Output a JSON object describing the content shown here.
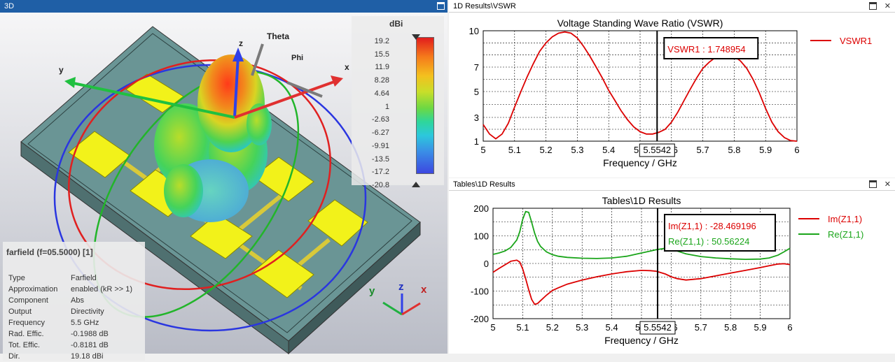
{
  "pane3d": {
    "title": "3D",
    "colorbar": {
      "unit": "dBi",
      "ticks": [
        "19.2",
        "15.5",
        "11.9",
        "8.28",
        "4.64",
        "1",
        "-2.63",
        "-6.27",
        "-9.91",
        "-13.5",
        "-17.2",
        "-20.8"
      ]
    },
    "axes_labels": {
      "theta": "Theta",
      "phi": "Phi",
      "x": "x",
      "y": "y",
      "z": "z"
    },
    "triad": {
      "x": "x",
      "y": "y",
      "z": "z"
    },
    "info": {
      "title": "farfield (f=05.5000) [1]",
      "rows": [
        {
          "key": "Type",
          "value": "Farfield"
        },
        {
          "key": "Approximation",
          "value": "enabled (kR >> 1)"
        },
        {
          "key": "Component",
          "value": "Abs"
        },
        {
          "key": "Output",
          "value": "Directivity"
        },
        {
          "key": "Frequency",
          "value": "5.5 GHz"
        },
        {
          "key": "Rad. Effic.",
          "value": "-0.1988 dB"
        },
        {
          "key": "Tot. Effic.",
          "value": "-0.8181 dB"
        },
        {
          "key": "Dir.",
          "value": "19.18 dBi"
        }
      ]
    }
  },
  "vswr_pane": {
    "title": "1D Results\\VSWR",
    "marker_box": "VSWR1 : 1.748954",
    "marker_x_label": "5.5542"
  },
  "z_pane": {
    "title": "Tables\\1D Results",
    "marker_box_im": "Im(Z1,1) : -28.469196",
    "marker_box_re": "Re(Z1,1) : 50.56224",
    "marker_x_label": "5.5542"
  },
  "chart_data": [
    {
      "type": "line",
      "title": "Voltage Standing Wave Ratio (VSWR)",
      "xlabel": "Frequency / GHz",
      "ylabel": "",
      "xlim": [
        5,
        6
      ],
      "ylim": [
        1,
        10
      ],
      "x_ticks": [
        "5",
        "5.1",
        "5.2",
        "5.3",
        "5.4",
        "5.5",
        "5.6",
        "5.7",
        "5.8",
        "5.9",
        "6"
      ],
      "y_ticks": [
        "1",
        "3",
        "5",
        "7",
        "10"
      ],
      "y_tick_values": [
        1,
        3,
        5,
        7,
        10
      ],
      "marker_x": 5.5542,
      "legend_position": "right",
      "series": [
        {
          "name": "VSWR1",
          "color": "#dc0000",
          "x": [
            5.0,
            5.02,
            5.04,
            5.06,
            5.08,
            5.1,
            5.12,
            5.14,
            5.16,
            5.18,
            5.2,
            5.22,
            5.24,
            5.26,
            5.28,
            5.3,
            5.32,
            5.34,
            5.36,
            5.38,
            5.4,
            5.42,
            5.44,
            5.46,
            5.48,
            5.5,
            5.52,
            5.54,
            5.56,
            5.58,
            5.6,
            5.62,
            5.64,
            5.66,
            5.68,
            5.7,
            5.72,
            5.74,
            5.76,
            5.78,
            5.8,
            5.82,
            5.84,
            5.86,
            5.88,
            5.9,
            5.92,
            5.94,
            5.96,
            5.98,
            6.0
          ],
          "y": [
            2.4,
            1.6,
            1.2,
            1.6,
            2.5,
            3.8,
            5.0,
            6.2,
            7.3,
            8.3,
            9.0,
            9.5,
            9.8,
            9.9,
            9.8,
            9.4,
            8.7,
            7.9,
            7.0,
            6.1,
            5.1,
            4.3,
            3.5,
            2.8,
            2.2,
            1.8,
            1.6,
            1.6,
            1.75,
            2.0,
            2.6,
            3.4,
            4.3,
            5.2,
            6.1,
            6.9,
            7.4,
            7.8,
            8.0,
            8.0,
            7.9,
            7.5,
            6.9,
            6.0,
            4.9,
            3.7,
            2.6,
            1.8,
            1.3,
            1.05,
            1.0
          ]
        }
      ]
    },
    {
      "type": "line",
      "title": "Tables\\1D Results",
      "xlabel": "Frequency / GHz",
      "ylabel": "",
      "xlim": [
        5,
        6
      ],
      "ylim": [
        -200,
        200
      ],
      "x_ticks": [
        "5",
        "5.1",
        "5.2",
        "5.3",
        "5.4",
        "5.5",
        "5.6",
        "5.7",
        "5.8",
        "5.9",
        "6"
      ],
      "y_ticks": [
        "200",
        "100",
        "0",
        "-100",
        "-200"
      ],
      "y_tick_values": [
        200,
        100,
        0,
        -100,
        -200
      ],
      "marker_x": 5.5542,
      "legend_position": "right",
      "series": [
        {
          "name": "Im(Z1,1)",
          "color": "#dc0000",
          "x": [
            5.0,
            5.02,
            5.04,
            5.06,
            5.08,
            5.09,
            5.1,
            5.11,
            5.12,
            5.13,
            5.14,
            5.15,
            5.16,
            5.18,
            5.2,
            5.22,
            5.25,
            5.3,
            5.35,
            5.4,
            5.45,
            5.5,
            5.53,
            5.55,
            5.58,
            5.6,
            5.62,
            5.65,
            5.7,
            5.75,
            5.8,
            5.85,
            5.9,
            5.93,
            5.96,
            5.98,
            6.0
          ],
          "y": [
            -32,
            -18,
            -5,
            8,
            12,
            5,
            -20,
            -55,
            -95,
            -130,
            -148,
            -145,
            -135,
            -115,
            -98,
            -88,
            -75,
            -60,
            -48,
            -38,
            -30,
            -25,
            -26,
            -28,
            -38,
            -48,
            -55,
            -60,
            -55,
            -45,
            -35,
            -25,
            -15,
            -8,
            -2,
            -1,
            -4
          ]
        },
        {
          "name": "Re(Z1,1)",
          "color": "#1aa51a",
          "x": [
            5.0,
            5.02,
            5.04,
            5.06,
            5.08,
            5.09,
            5.1,
            5.11,
            5.12,
            5.13,
            5.14,
            5.15,
            5.16,
            5.18,
            5.2,
            5.22,
            5.25,
            5.3,
            5.35,
            5.4,
            5.45,
            5.5,
            5.53,
            5.55,
            5.58,
            5.6,
            5.62,
            5.65,
            5.7,
            5.75,
            5.8,
            5.85,
            5.9,
            5.93,
            5.96,
            5.98,
            6.0
          ],
          "y": [
            33,
            38,
            45,
            58,
            85,
            115,
            160,
            188,
            185,
            150,
            110,
            80,
            62,
            42,
            32,
            26,
            22,
            19,
            18,
            20,
            26,
            38,
            45,
            50,
            55,
            52,
            45,
            35,
            25,
            20,
            17,
            15,
            16,
            20,
            30,
            42,
            55
          ]
        }
      ]
    }
  ]
}
